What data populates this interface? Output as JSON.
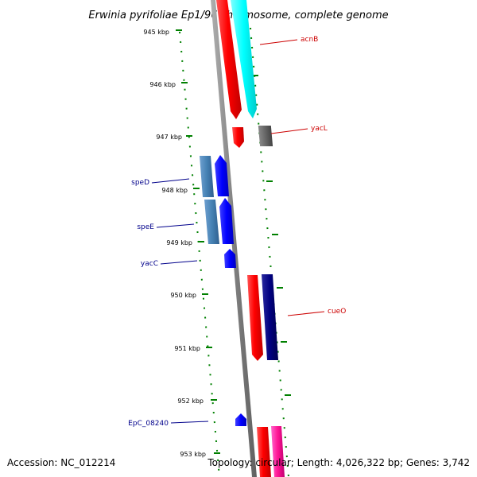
{
  "title": "Erwinia pyrifoliae Ep1/96 chromosome, complete genome",
  "footer": {
    "accession": "Accession: NC_012214",
    "topology": "Topology: circular; Length: 4,026,322 bp; Genes: 3,742"
  },
  "ticks": [
    "945 kbp",
    "946 kbp",
    "947 kbp",
    "948 kbp",
    "949 kbp",
    "950 kbp",
    "951 kbp",
    "952 kbp",
    "953 kbp"
  ],
  "labels": {
    "acnB": "acnB",
    "yacL": "yacL",
    "speD": "speD",
    "speE": "speE",
    "yacC": "yacC",
    "cueO": "cueO",
    "EpC_08240": "EpC_08240"
  },
  "colors": {
    "forward_label": "#cc0000",
    "reverse_label": "#00008b",
    "tick": "#008000",
    "backbone": "#888888"
  }
}
